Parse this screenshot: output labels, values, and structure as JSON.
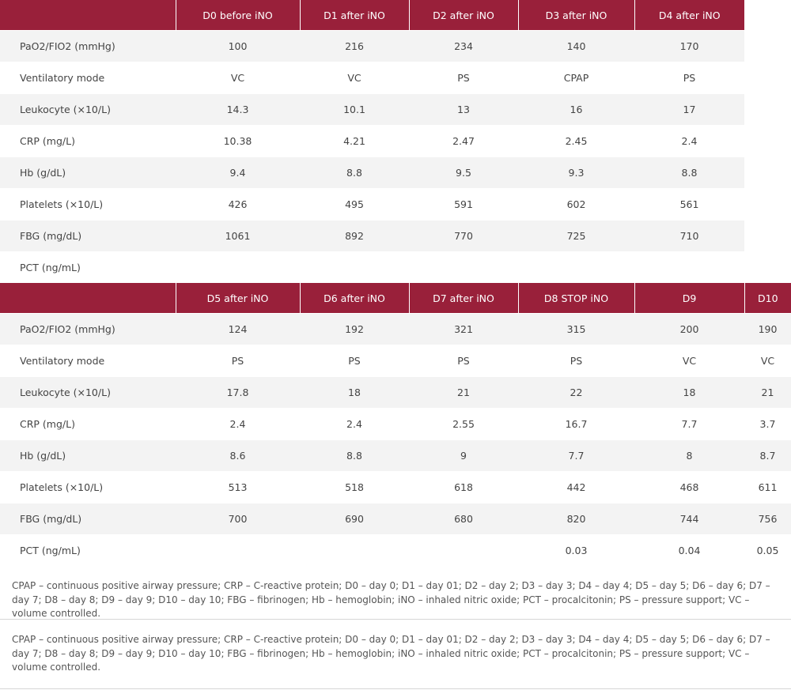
{
  "table1": {
    "headers": [
      "",
      "D0 before iNO",
      "D1 after iNO",
      "D2 after iNO",
      "D3 after iNO",
      "D4 after iNO"
    ],
    "rows": [
      [
        "PaO2/FIO2 (mmHg)",
        "100",
        "216",
        "234",
        "140",
        "170"
      ],
      [
        "Ventilatory mode",
        "VC",
        "VC",
        "PS",
        "CPAP",
        "PS"
      ],
      [
        "Leukocyte (×10/L)",
        "14.3",
        "10.1",
        "13",
        "16",
        "17"
      ],
      [
        "CRP (mg/L)",
        "10.38",
        "4.21",
        "2.47",
        "2.45",
        "2.4"
      ],
      [
        "Hb (g/dL)",
        "9.4",
        "8.8",
        "9.5",
        "9.3",
        "8.8"
      ],
      [
        "Platelets (×10/L)",
        "426",
        "495",
        "591",
        "602",
        "561"
      ],
      [
        "FBG (mg/dL)",
        "1061",
        "892",
        "770",
        "725",
        "710"
      ],
      [
        "PCT (ng/mL)",
        "",
        "",
        "",
        "",
        ""
      ]
    ]
  },
  "table2": {
    "headers": [
      "",
      "D5 after iNO",
      "D6 after iNO",
      "D7 after iNO",
      "D8 STOP iNO",
      "D9",
      "D10"
    ],
    "rows": [
      [
        "PaO2/FIO2 (mmHg)",
        "124",
        "192",
        "321",
        "315",
        "200",
        "190"
      ],
      [
        "Ventilatory mode",
        "PS",
        "PS",
        "PS",
        "PS",
        "VC",
        "VC"
      ],
      [
        "Leukocyte (×10/L)",
        "17.8",
        "18",
        "21",
        "22",
        "18",
        "21"
      ],
      [
        "CRP (mg/L)",
        "2.4",
        "2.4",
        "2.55",
        "16.7",
        "7.7",
        "3.7"
      ],
      [
        "Hb (g/dL)",
        "8.6",
        "8.8",
        "9",
        "7.7",
        "8",
        "8.7"
      ],
      [
        "Platelets (×10/L)",
        "513",
        "518",
        "618",
        "442",
        "468",
        "611"
      ],
      [
        "FBG (mg/dL)",
        "700",
        "690",
        "680",
        "820",
        "744",
        "756"
      ],
      [
        "PCT (ng/mL)",
        "",
        "",
        "",
        "0.03",
        "0.04",
        "0.05"
      ]
    ]
  },
  "notes": {
    "note1": "CPAP – continuous positive airway pressure; CRP – C-reactive protein; D0 – day 0; D1 – day 01; D2 – day 2; D3 – day 3; D4 – day 4; D5 – day 5; D6 – day 6; D7 – day 7; D8 – day 8; D9 – day 9; D10 – day 10; FBG – fibrinogen; Hb – hemoglobin; iNO – inhaled nitric oxide; PCT – procalcitonin; PS – pressure support; VC – volume controlled.",
    "note2": "CPAP – continuous positive airway pressure; CRP – C-reactive protein; D0 – day 0; D1 – day 01; D2 – day 2; D3 – day 3; D4 – day 4; D5 – day 5; D6 – day 6; D7 – day 7; D8 – day 8; D9 – day 9; D10 – day 10; FBG – fibrinogen; Hb – hemoglobin; iNO – inhaled nitric oxide; PCT – procalcitonin; PS – pressure support; VC – volume controlled."
  },
  "colors": {
    "header_bg": "#99203a",
    "header_text": "#ffffff",
    "row_stripe": "#f3f3f3"
  }
}
